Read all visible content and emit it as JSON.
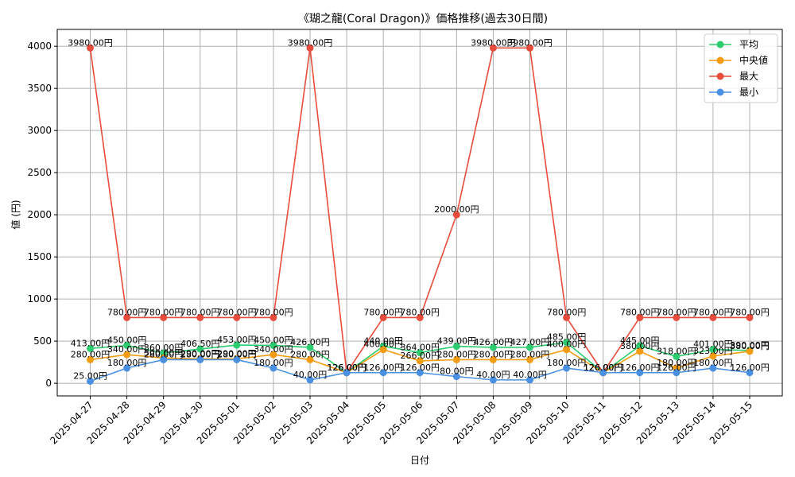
{
  "chart_data": {
    "type": "line",
    "title": "《瑚之龍(Coral Dragon)》価格推移(過去30日間)",
    "xlabel": "日付",
    "ylabel": "値 (円)",
    "categories": [
      "2025-04-27",
      "2025-04-28",
      "2025-04-29",
      "2025-04-30",
      "2025-05-01",
      "2025-05-02",
      "2025-05-03",
      "2025-05-04",
      "2025-05-05",
      "2025-05-06",
      "2025-05-07",
      "2025-05-08",
      "2025-05-09",
      "2025-05-10",
      "2025-05-11",
      "2025-05-12",
      "2025-05-13",
      "2025-05-14",
      "2025-05-15"
    ],
    "ylim": [
      -150,
      4200
    ],
    "yticks": [
      0,
      500,
      1000,
      1500,
      2000,
      2500,
      3000,
      3500,
      4000
    ],
    "grid": true,
    "legend_position": "top-right",
    "value_suffix": "円",
    "series": [
      {
        "name": "平均",
        "color": "#2ecc71",
        "values": [
          413,
          450,
          360,
          406.5,
          453,
          450,
          426,
          126,
          440,
          364,
          439,
          426,
          427,
          485,
          126,
          445,
          318,
          401,
          390
        ]
      },
      {
        "name": "中央値",
        "color": "#f39c12",
        "values": [
          280,
          340,
          300,
          290,
          290,
          340,
          280,
          126,
          400,
          266,
          280,
          280,
          280,
          400,
          126,
          380,
          180,
          323,
          380
        ]
      },
      {
        "name": "最大",
        "color": "#e74c3c",
        "values": [
          3980,
          780,
          780,
          780,
          780,
          780,
          3980,
          126,
          780,
          780,
          2000,
          3980,
          3980,
          780,
          126,
          780,
          780,
          780,
          780
        ]
      },
      {
        "name": "最小",
        "color": "#4a90e2",
        "values": [
          25,
          180,
          280,
          280,
          280,
          180,
          40,
          126,
          126,
          126,
          80,
          40,
          40,
          180,
          126,
          126,
          126,
          180,
          126
        ]
      }
    ]
  }
}
